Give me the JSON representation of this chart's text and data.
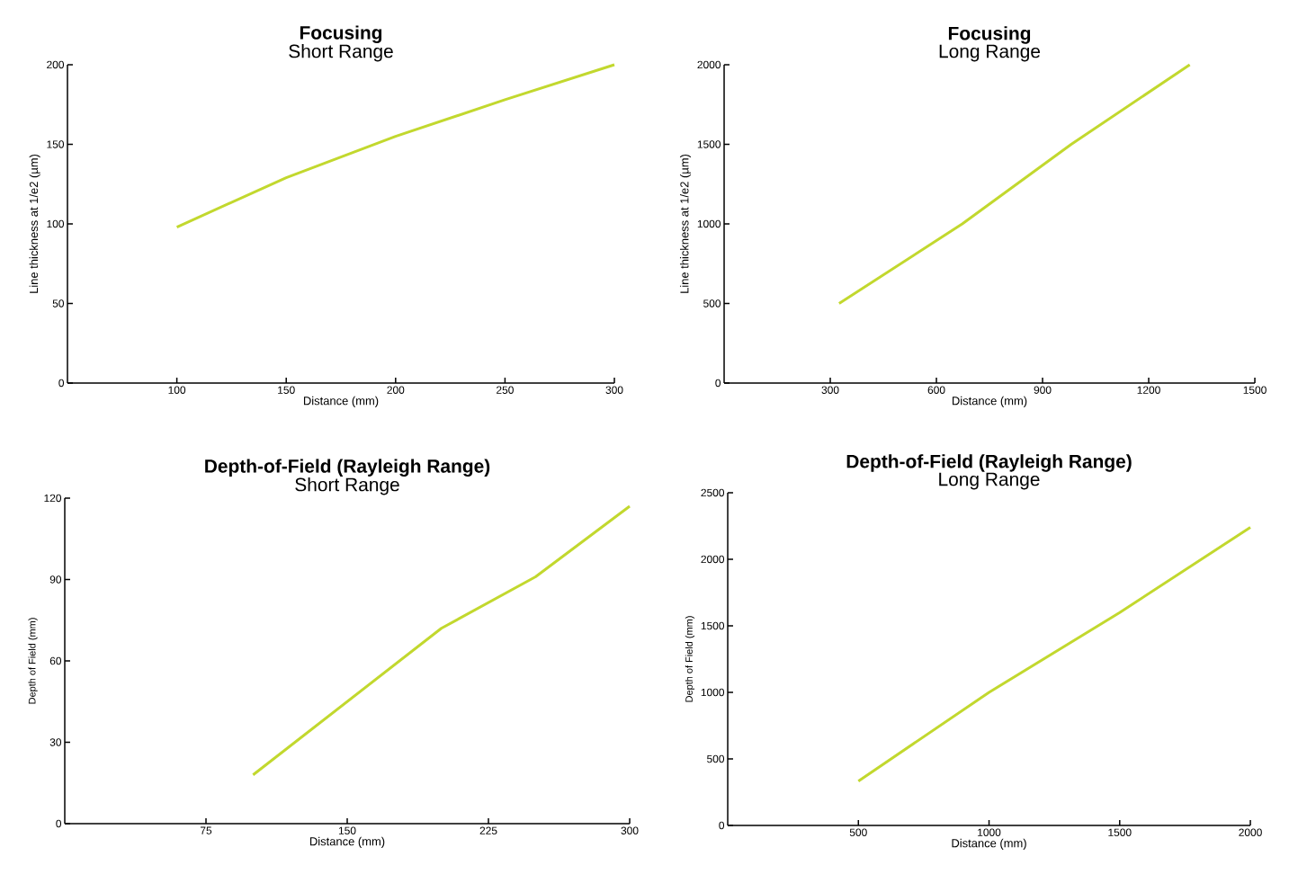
{
  "chart_data": [
    {
      "type": "line",
      "title": "Focusing",
      "subtitle": "Short Range",
      "xlabel": "Distance (mm)",
      "ylabel": "Line thickness at 1/e2 (µm)",
      "x": [
        100,
        150,
        200,
        250,
        300
      ],
      "xlim": [
        50,
        300
      ],
      "ylim": [
        0,
        200
      ],
      "xticks": [
        100,
        150,
        200,
        250,
        300
      ],
      "yticks": [
        0,
        50,
        100,
        150,
        200
      ],
      "series": [
        {
          "color": "#c2d82e",
          "values": [
            98,
            129,
            155,
            178,
            200
          ]
        }
      ]
    },
    {
      "type": "line",
      "title": "Focusing",
      "subtitle": "Long Range",
      "xlabel": "Distance (mm)",
      "ylabel": "Line thickness at 1/e2 (µm)",
      "x": [
        325,
        673,
        981,
        1316
      ],
      "xlim": [
        0,
        1500
      ],
      "ylim": [
        0,
        2000
      ],
      "xticks": [
        300,
        600,
        900,
        1200,
        1500
      ],
      "yticks": [
        0,
        500,
        1000,
        1500,
        2000
      ],
      "series": [
        {
          "color": "#c2d82e",
          "values": [
            500,
            1000,
            1500,
            2000
          ]
        }
      ]
    },
    {
      "type": "line",
      "title": "Depth-of-Field (Rayleigh Range)",
      "subtitle": "Short Range",
      "xlabel": "Distance (mm)",
      "ylabel": "Depth of Field (mm)",
      "x": [
        100,
        200,
        250,
        300
      ],
      "xlim": [
        0,
        300
      ],
      "ylim": [
        0,
        120
      ],
      "xticks": [
        75,
        150,
        225,
        300
      ],
      "yticks": [
        0,
        30,
        60,
        90,
        120
      ],
      "series": [
        {
          "color": "#c2d82e",
          "values": [
            18,
            72,
            91,
            117
          ]
        }
      ]
    },
    {
      "type": "line",
      "title": "Depth-of-Field (Rayleigh Range)",
      "subtitle": "Long Range",
      "xlabel": "Distance (mm)",
      "ylabel": "Depth of Field (mm)",
      "x": [
        500,
        1000,
        1500,
        2000
      ],
      "xlim": [
        0,
        2000
      ],
      "ylim": [
        0,
        2500
      ],
      "xticks": [
        500,
        1000,
        1500,
        2000
      ],
      "yticks": [
        0,
        500,
        1000,
        1500,
        2000,
        2500
      ],
      "series": [
        {
          "color": "#c2d82e",
          "values": [
            333,
            1000,
            1600,
            2240
          ]
        }
      ]
    }
  ]
}
